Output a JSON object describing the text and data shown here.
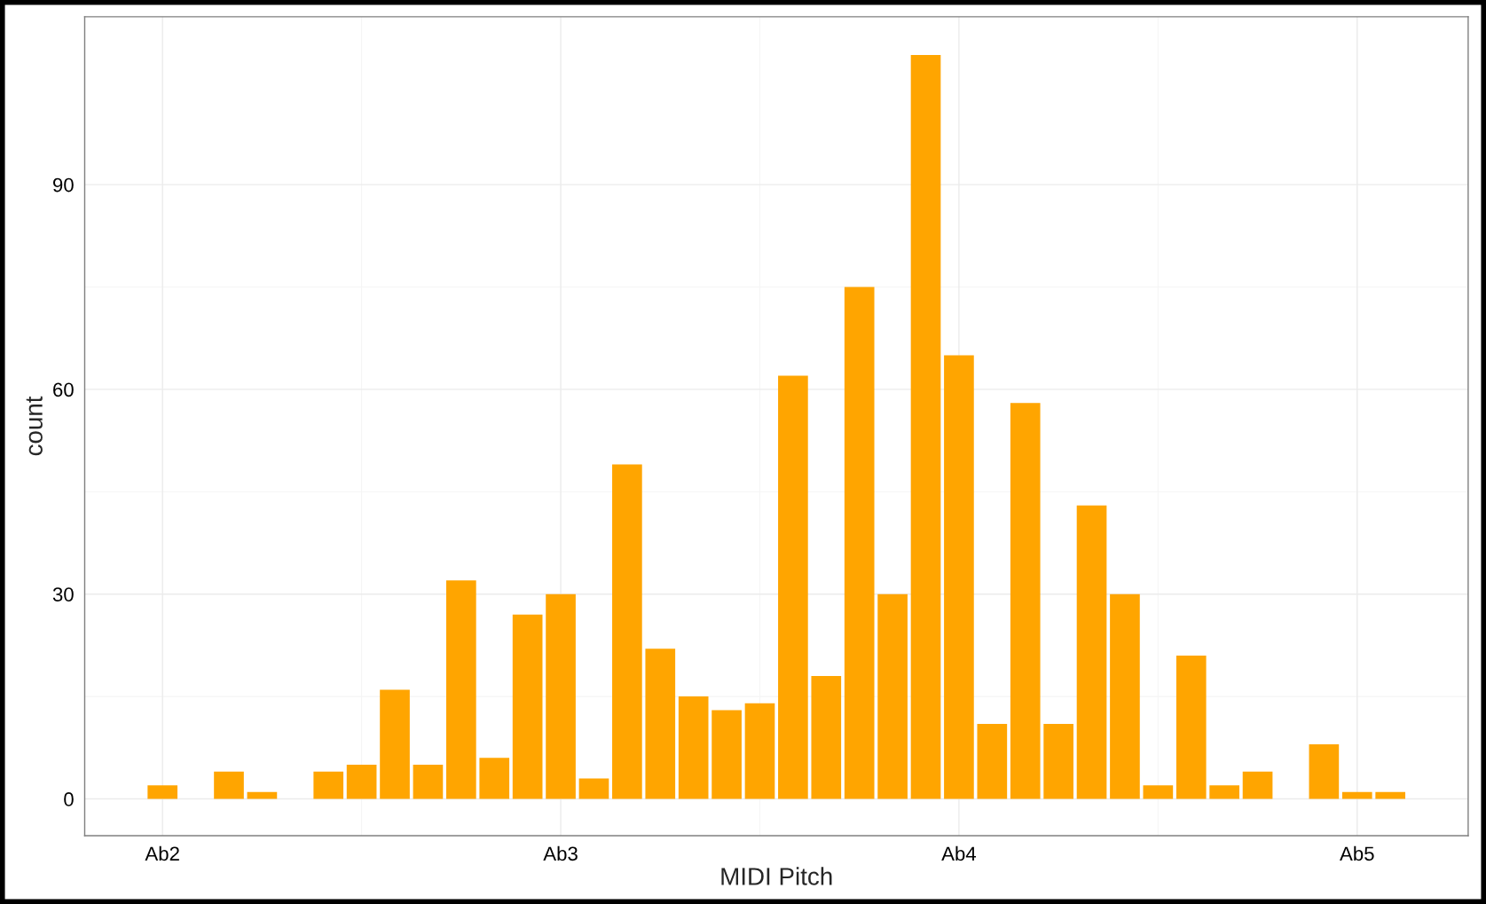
{
  "chart_data": {
    "type": "bar",
    "xlabel": "MIDI Pitch",
    "ylabel": "count",
    "color": "#ffa500",
    "categories": [
      "Ab2",
      null,
      null,
      null,
      null,
      null,
      null,
      null,
      null,
      null,
      null,
      null,
      "Ab3",
      null,
      null,
      null,
      null,
      null,
      null,
      null,
      null,
      null,
      null,
      null,
      "Ab4",
      null,
      null,
      null,
      null,
      null,
      null,
      null,
      null,
      null,
      null,
      null,
      "Ab5",
      null
    ],
    "values": [
      2,
      0,
      4,
      1,
      0,
      4,
      5,
      16,
      5,
      32,
      6,
      27,
      30,
      3,
      49,
      22,
      15,
      13,
      14,
      62,
      18,
      75,
      30,
      109,
      65,
      11,
      58,
      11,
      43,
      30,
      2,
      21,
      2,
      4,
      0,
      8,
      1,
      1
    ],
    "ylim": [
      -5.4,
      114.6
    ],
    "yticks": [
      0,
      30,
      60,
      90
    ],
    "grid": true
  }
}
